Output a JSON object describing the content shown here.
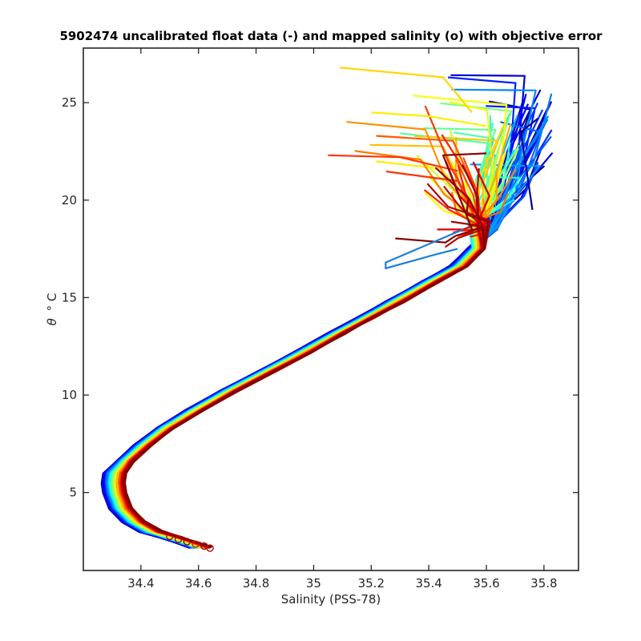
{
  "chart_data": {
    "type": "line",
    "title": "5902474 uncalibrated float data (-) and mapped salinity (o) with objective error",
    "xlabel": "Salinity (PSS-78)",
    "ylabel_symbol": "θ",
    "ylabel_unit": "° C",
    "xlim": [
      34.2,
      35.92
    ],
    "ylim": [
      1,
      27.8
    ],
    "xticks": [
      {
        "value": 34.4,
        "label": "34.4"
      },
      {
        "value": 34.6,
        "label": "34.6"
      },
      {
        "value": 34.8,
        "label": "34.8"
      },
      {
        "value": 35.0,
        "label": "35"
      },
      {
        "value": 35.2,
        "label": "35.2"
      },
      {
        "value": 35.4,
        "label": "35.4"
      },
      {
        "value": 35.6,
        "label": "35.6"
      },
      {
        "value": 35.8,
        "label": "35.8"
      }
    ],
    "yticks": [
      {
        "value": 5,
        "label": "5"
      },
      {
        "value": 10,
        "label": "10"
      },
      {
        "value": 15,
        "label": "15"
      },
      {
        "value": 20,
        "label": "20"
      },
      {
        "value": 25,
        "label": "25"
      }
    ],
    "grid": false,
    "colormap": "jet",
    "profile_count": 110,
    "base_profile": {
      "x": [
        34.62,
        34.58,
        34.52,
        34.45,
        34.39,
        34.345,
        34.325,
        34.32,
        34.325,
        34.36,
        34.42,
        34.5,
        34.6,
        34.72,
        34.85,
        34.98,
        35.1,
        35.2,
        35.3,
        35.42,
        35.52,
        35.58
      ],
      "y": [
        2.2,
        2.4,
        2.7,
        3.0,
        3.5,
        4.2,
        5.0,
        5.5,
        6.0,
        6.6,
        7.4,
        8.3,
        9.2,
        10.2,
        11.2,
        12.2,
        13.2,
        14.0,
        14.8,
        15.8,
        16.6,
        17.5
      ]
    },
    "mapped_salinity_points": {
      "x": [
        34.5,
        34.53,
        34.56,
        34.59,
        34.62,
        34.64
      ],
      "y": [
        2.75,
        2.6,
        2.48,
        2.35,
        2.25,
        2.15
      ],
      "colors": [
        "#c00000",
        "#b00000",
        "#a00000",
        "#cc2200",
        "#990000",
        "#b01010"
      ]
    }
  }
}
